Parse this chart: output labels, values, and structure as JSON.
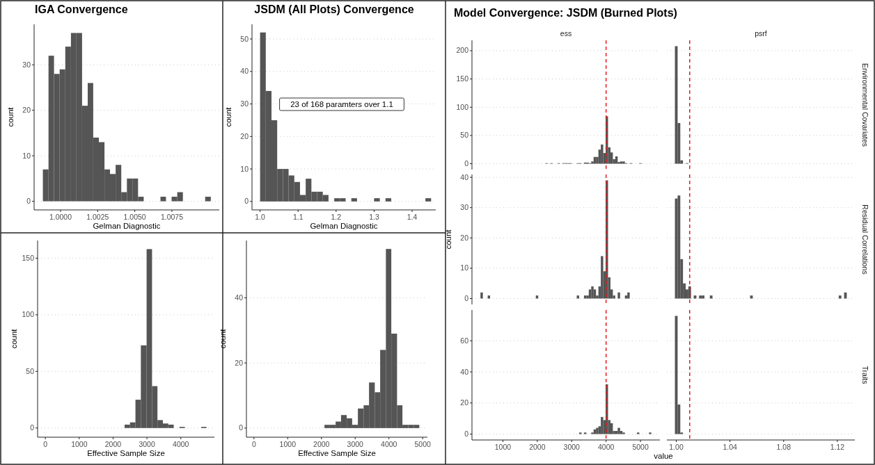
{
  "chart_data": [
    {
      "type": "histogram",
      "title": "IGA Convergence",
      "xlabel": "Gelman Diagnostic",
      "ylabel": "count",
      "color": "#555555",
      "grid": "y",
      "bins": [
        0.99881,
        0.99919,
        0.99956,
        0.99994,
        1.00032,
        1.0007,
        1.00107,
        1.00145,
        1.00183,
        1.0022,
        1.00258,
        1.00296,
        1.00333,
        1.00371,
        1.00409,
        1.00447,
        1.00484,
        1.00522,
        1.0056,
        1.00597,
        1.00635,
        1.00673,
        1.0071,
        1.00748,
        1.00786,
        1.00824,
        1.00861,
        1.00899,
        1.00937,
        1.00974,
        1.01012
      ],
      "values": [
        7,
        32,
        28,
        29,
        34,
        37,
        37,
        21,
        26,
        14,
        13,
        7,
        6,
        8,
        2,
        5,
        5,
        1,
        0,
        0,
        0,
        1,
        0,
        1,
        2,
        0,
        0,
        0,
        0,
        1
      ],
      "xlim": [
        0.99822,
        1.01069
      ],
      "ylim": [
        -1.9,
        38.9
      ],
      "xticks": [
        {
          "value": 1,
          "label": "1.0000"
        },
        {
          "value": 1.0025,
          "label": "1.0025"
        },
        {
          "value": 1.005,
          "label": "1.0050"
        },
        {
          "value": 1.0075,
          "label": "1.0075"
        }
      ],
      "yticks": [
        0,
        10,
        20,
        30
      ]
    },
    {
      "type": "histogram",
      "title": "JSDM (All Plots) Convergence",
      "xlabel": "Gelman Diagnostic",
      "ylabel": "count",
      "color": "#555555",
      "grid": "y",
      "annotations": [
        "23 of 168 paramters over 1.1"
      ],
      "bins": [
        1.0,
        1.015,
        1.03,
        1.045,
        1.06,
        1.075,
        1.09,
        1.105,
        1.12,
        1.135,
        1.15,
        1.165,
        1.18,
        1.195,
        1.21,
        1.225,
        1.24,
        1.255,
        1.27,
        1.285,
        1.3,
        1.315,
        1.33,
        1.345,
        1.36,
        1.375,
        1.39,
        1.405,
        1.42,
        1.435,
        1.45
      ],
      "values": [
        52,
        34,
        25,
        10,
        10,
        8,
        6,
        2,
        7,
        3,
        3,
        2,
        0,
        1,
        1,
        0,
        1,
        0,
        0,
        0,
        1,
        0,
        1,
        0,
        0,
        0,
        0,
        0,
        0,
        1
      ],
      "xlim": [
        0.9787,
        1.4622
      ],
      "ylim": [
        -2.6,
        54.5
      ],
      "xticks": [
        {
          "value": 1,
          "label": "1.0"
        },
        1.1,
        1.2,
        1.3,
        1.4
      ],
      "yticks": [
        0,
        10,
        20,
        30,
        40,
        50
      ]
    },
    {
      "type": "histogram",
      "xlabel": "Effective Sample Size",
      "ylabel": "count",
      "color": "#555555",
      "grid": "y",
      "bins": [
        2340,
        2500,
        2660,
        2820,
        2990,
        3150,
        3310,
        3470,
        3630,
        3790,
        3960,
        4120,
        4280,
        4440,
        4600,
        4760
      ],
      "values": [
        3,
        5,
        25,
        73,
        158,
        37,
        7,
        4,
        3,
        0,
        1,
        0,
        0,
        0,
        1
      ],
      "xlim": [
        -230,
        4992
      ],
      "ylim": [
        -8.1,
        165.6
      ],
      "xticks": [
        0,
        1000,
        2000,
        3000,
        4000
      ],
      "yticks": [
        0,
        50,
        100,
        150
      ]
    },
    {
      "type": "histogram",
      "xlabel": "Effective Sample Size",
      "ylabel": "count",
      "color": "#555555",
      "grid": "y",
      "bins": [
        2090,
        2250,
        2420,
        2580,
        2750,
        2910,
        3080,
        3250,
        3410,
        3580,
        3740,
        3910,
        4070,
        4240,
        4400,
        4570,
        4740,
        4900
      ],
      "values": [
        1,
        1,
        2,
        4,
        3,
        1,
        6,
        7,
        14,
        11,
        24,
        55,
        29,
        7,
        1,
        1,
        1
      ],
      "xlim": [
        -223,
        5140
      ],
      "ylim": [
        -2.8,
        57.6
      ],
      "xticks": [
        0,
        1000,
        2000,
        3000,
        4000,
        5000
      ],
      "yticks": [
        0,
        20,
        40
      ]
    },
    {
      "type": "histogram",
      "title": "Model Convergence: JSDM (Burned Plots)",
      "subtitle": "ess",
      "color": "#555555",
      "grid": "y",
      "tick_labels": "y",
      "bins": [
        2237,
        2307,
        2377,
        2447,
        2587,
        2657,
        2727,
        2797,
        2867,
        2937,
        3007,
        3147,
        3217,
        3287,
        3357,
        3427,
        3497,
        3567,
        3637,
        3707,
        3777,
        3847,
        3917,
        3987,
        4057,
        4127,
        4197,
        4267,
        4337,
        4407,
        4477,
        4547,
        4617,
        4687,
        4757,
        4967,
        5037
      ],
      "values": [
        1,
        0,
        1,
        0,
        1,
        0,
        1,
        1,
        1,
        1,
        0,
        1,
        1,
        0,
        2,
        2,
        1,
        4,
        12,
        12,
        25,
        34,
        19,
        84,
        29,
        20,
        8,
        13,
        3,
        4,
        4,
        1,
        0,
        1,
        0,
        1
      ],
      "ref_lines": [
        {
          "axis": "x",
          "value": 4000,
          "color": "#e41a1c",
          "line_style": "dashed"
        }
      ],
      "xlim": [
        100,
        5565
      ],
      "ylim": [
        -10.4,
        218.4
      ],
      "yticks": [
        0,
        50,
        100,
        150,
        200
      ]
    },
    {
      "type": "histogram",
      "subtitle": "psrf",
      "color": "#555555",
      "grid": "y",
      "tick_labels": false,
      "annotations": [
        "Environmental Covariates"
      ],
      "bins": [
        0.999,
        1.001,
        1.003,
        1.005,
        1.007,
        1.009
      ],
      "values": [
        208,
        72,
        6,
        0,
        1
      ],
      "ref_lines": [
        {
          "axis": "x",
          "value": 1.01,
          "color": "#e41a1c",
          "line_style": "dashed"
        }
      ],
      "xlim": [
        0.993,
        1.133
      ],
      "ylim": [
        -10.4,
        218.4
      ],
      "yticks": [
        0,
        50,
        100,
        150,
        200
      ]
    },
    {
      "type": "histogram",
      "ylabel": "count",
      "color": "#555555",
      "grid": "y",
      "tick_labels": "y",
      "bins": [
        347,
        417,
        557,
        627,
        1957,
        2027,
        3147,
        3217,
        3357,
        3427,
        3497,
        3567,
        3637,
        3707,
        3777,
        3847,
        3917,
        3987,
        4057,
        4127,
        4197,
        4267,
        4337,
        4407,
        4547,
        4617,
        4687
      ],
      "values": [
        2,
        0,
        1,
        0,
        1,
        0,
        1,
        0,
        1,
        1,
        3,
        4,
        3,
        1,
        4,
        14,
        9,
        39,
        7,
        3,
        1,
        0,
        2,
        0,
        1,
        2
      ],
      "ref_lines": [
        {
          "axis": "x",
          "value": 4000,
          "color": "#e41a1c",
          "line_style": "dashed"
        }
      ],
      "xlim": [
        100,
        5565
      ],
      "ylim": [
        -1.95,
        40.95
      ],
      "yticks": [
        0,
        10,
        20,
        30,
        40
      ]
    },
    {
      "type": "histogram",
      "color": "#555555",
      "grid": "y",
      "tick_labels": false,
      "annotations": [
        "Residual Correlations"
      ],
      "bins": [
        0.999,
        1.001,
        1.003,
        1.005,
        1.007,
        1.009,
        1.011,
        1.013,
        1.015,
        1.017,
        1.019,
        1.021,
        1.025,
        1.027,
        1.055,
        1.057,
        1.121,
        1.123,
        1.125,
        1.127
      ],
      "values": [
        33,
        34,
        13,
        5,
        3,
        4,
        0,
        1,
        0,
        1,
        1,
        0,
        1,
        0,
        1,
        0,
        1,
        0,
        2
      ],
      "ref_lines": [
        {
          "axis": "x",
          "value": 1.01,
          "color": "#e41a1c",
          "line_style": "dashed"
        }
      ],
      "xlim": [
        0.993,
        1.133
      ],
      "ylim": [
        -1.95,
        40.95
      ],
      "yticks": [
        0,
        10,
        20,
        30,
        40
      ]
    },
    {
      "type": "histogram",
      "xlabel": "value",
      "color": "#555555",
      "grid": "y",
      "bins": [
        3217,
        3287,
        3357,
        3427,
        3567,
        3637,
        3707,
        3777,
        3847,
        3917,
        3987,
        4057,
        4127,
        4197,
        4267,
        4337,
        4407,
        4477,
        4547,
        4897,
        4967,
        5247,
        5317
      ],
      "values": [
        1,
        0,
        1,
        0,
        1,
        3,
        4,
        5,
        11,
        9,
        32,
        9,
        7,
        2,
        2,
        4,
        2,
        1,
        0,
        1,
        0,
        1
      ],
      "ref_lines": [
        {
          "axis": "x",
          "value": 4000,
          "color": "#e41a1c",
          "line_style": "dashed"
        }
      ],
      "xlim": [
        100,
        5565
      ],
      "ylim": [
        -3.8,
        79.8
      ],
      "xticks": [
        1000,
        2000,
        3000,
        4000,
        5000
      ],
      "yticks": [
        0,
        20,
        40,
        60
      ]
    },
    {
      "type": "histogram",
      "color": "#555555",
      "grid": "y",
      "tick_labels": "x",
      "annotations": [
        "Traits"
      ],
      "bins": [
        0.999,
        1.001,
        1.003,
        1.005
      ],
      "values": [
        76,
        19,
        1
      ],
      "ref_lines": [
        {
          "axis": "x",
          "value": 1.01,
          "color": "#e41a1c",
          "line_style": "dashed"
        }
      ],
      "xlim": [
        0.993,
        1.133
      ],
      "ylim": [
        -3.8,
        79.8
      ],
      "xticks": [
        {
          "value": 1,
          "label": "1.00"
        },
        1.04,
        1.08,
        1.12
      ],
      "yticks": [
        0,
        20,
        40,
        60
      ]
    }
  ]
}
